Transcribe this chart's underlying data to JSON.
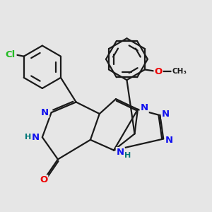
{
  "bg_color": "#e6e6e6",
  "bond_color": "#1a1a1a",
  "bond_width": 1.6,
  "atom_colors": {
    "N": "#1010ee",
    "O": "#ee0000",
    "Cl": "#22bb22",
    "H": "#007777",
    "C": "#1a1a1a"
  },
  "font_size_atom": 9.5,
  "font_size_H": 8.0,
  "font_size_small": 8.5
}
